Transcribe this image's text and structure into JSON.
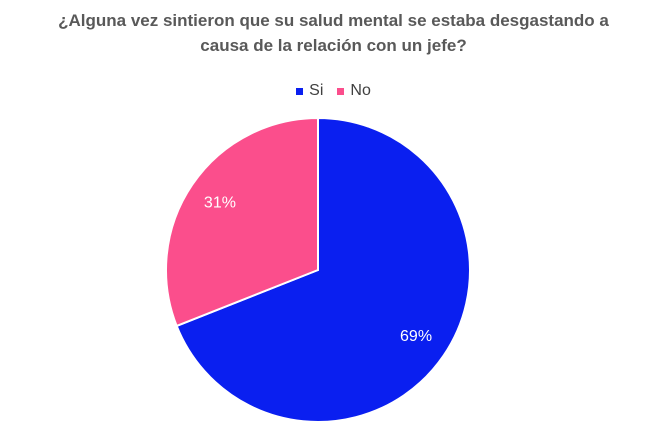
{
  "chart_data": {
    "type": "pie",
    "title_lines": [
      "¿Alguna vez sintieron que su salud mental se estaba desgastando a",
      "causa de la relación con un jefe?"
    ],
    "categories": [
      "Si",
      "No"
    ],
    "values": [
      69,
      31
    ],
    "value_labels": [
      "69%",
      "31%"
    ],
    "colors": [
      "#0a1ff0",
      "#fb4e8c"
    ],
    "legend_position": "top"
  }
}
